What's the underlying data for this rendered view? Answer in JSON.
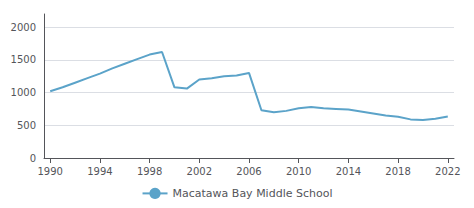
{
  "chart_data": {
    "type": "line",
    "x": [
      1990,
      1991,
      1992,
      1993,
      1994,
      1995,
      1996,
      1997,
      1998,
      1999,
      2000,
      2001,
      2002,
      2003,
      2004,
      2005,
      2006,
      2007,
      2008,
      2009,
      2010,
      2011,
      2012,
      2013,
      2014,
      2015,
      2016,
      2017,
      2018,
      2019,
      2020,
      2021,
      2022
    ],
    "series": [
      {
        "name": "Macatawa Bay Middle School",
        "color": "#5ba3c9",
        "values": [
          1020,
          1080,
          1150,
          1220,
          1290,
          1370,
          1440,
          1510,
          1580,
          1620,
          1080,
          1060,
          1200,
          1220,
          1250,
          1260,
          1300,
          730,
          700,
          720,
          760,
          780,
          760,
          750,
          740,
          710,
          680,
          650,
          630,
          590,
          580,
          600,
          635
        ]
      }
    ],
    "xlim": [
      1989.5,
      2022.5
    ],
    "xticks": [
      1990,
      1994,
      1998,
      2002,
      2006,
      2010,
      2014,
      2018,
      2022
    ],
    "ylim": [
      0,
      2200
    ],
    "yticks": [
      0,
      500,
      1000,
      1500,
      2000
    ],
    "grid": true,
    "legend": "bottom"
  }
}
